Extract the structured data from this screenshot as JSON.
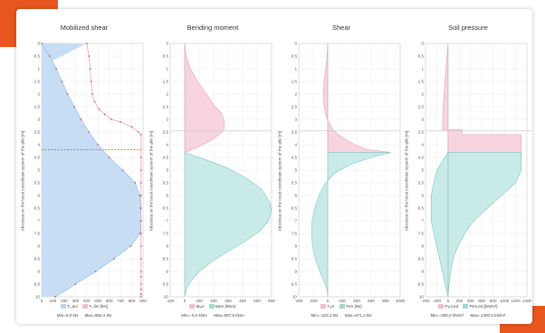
{
  "colors": {
    "accent": "#e8561f",
    "blue_fill": "#c7ddf4",
    "blue_line": "#9fc3ea",
    "pink_fill": "#f7d4de",
    "pink_line": "#e5a7b8",
    "teal_fill": "#c9ebe7",
    "teal_line": "#7cc8c0",
    "marker": "#c0607a"
  },
  "y_axis_title": "Abscissa on the local coordinate system of the pile [m]",
  "chart_data": [
    {
      "type": "area",
      "title": "Mobilized shear",
      "y_ticks": [
        "0",
        "0.5",
        "1",
        "1.5",
        "2",
        "2.5",
        "3",
        "3.5",
        "4",
        "4.5",
        "5",
        "5.5",
        "6",
        "6.5",
        "7",
        "7.5",
        "8",
        "8.5",
        "9",
        "9.5",
        "10"
      ],
      "x_ticks": [
        "0",
        "100",
        "200",
        "300",
        "400",
        "500",
        "600",
        "700",
        "800",
        "900"
      ],
      "xlim": [
        0,
        900
      ],
      "ylim": [
        0,
        10
      ],
      "legend": [
        {
          "label": "T₁,act",
          "color": "#9fc3ea"
        },
        {
          "label": "T₁,lim [kN]",
          "color": "#e5a7b8"
        }
      ],
      "min_label": "Min=0,0 kN",
      "max_label": "Max=882,4 kN",
      "series": [
        {
          "name": "T₁,act",
          "x": [
            0,
            70,
            130,
            180,
            230,
            290,
            350,
            420,
            500,
            600,
            720,
            830,
            870,
            878,
            882,
            875,
            790,
            640,
            480,
            300,
            120
          ],
          "y": [
            0,
            0.5,
            1,
            1.5,
            2,
            2.5,
            3,
            3.5,
            4,
            4.5,
            5,
            5.5,
            6,
            6.5,
            7,
            7.5,
            8,
            8.5,
            9,
            9.5,
            10
          ]
        },
        {
          "name": "T₁,lim",
          "x": [
            400,
            420,
            430,
            440,
            450,
            470,
            510,
            560,
            620,
            700,
            800,
            860,
            882,
            882,
            882,
            882,
            882,
            882,
            882,
            882,
            882,
            882,
            882,
            882,
            882,
            882,
            882,
            882
          ],
          "y": [
            0,
            0.5,
            1,
            1.5,
            2,
            2.3,
            2.6,
            2.8,
            3.0,
            3.1,
            3.3,
            3.5,
            3.6,
            4.5,
            5,
            5.5,
            6,
            6.5,
            7,
            7.5,
            8,
            8.5,
            9,
            9.2,
            9.5,
            9.7,
            9.9,
            10
          ]
        }
      ],
      "hline": 4.2,
      "hline_color": "#e8561f"
    },
    {
      "type": "area",
      "title": "Bending moment",
      "y_ticks": [
        "0",
        "0.5",
        "1",
        "1.5",
        "2",
        "2.5",
        "3",
        "3.5",
        "4",
        "4.5",
        "5",
        "5.5",
        "6",
        "6.5",
        "7",
        "7.5",
        "8",
        "8.5",
        "9",
        "9.5",
        "10"
      ],
      "x_ticks": [
        "-100",
        "0",
        "100",
        "200",
        "300",
        "400",
        "500",
        "600"
      ],
      "xlim": [
        -100,
        600
      ],
      "ylim": [
        0,
        10
      ],
      "legend": [
        {
          "label": "Mₐct",
          "color": "#e5a7b8"
        },
        {
          "label": "Mₗim [kNm]",
          "color": "#7cc8c0"
        }
      ],
      "min_label": "Min=-0,0 kNm",
      "max_label": "Max=597,5 kNm",
      "series": [
        {
          "name": "Mₐct",
          "x": [
            0,
            10,
            40,
            90,
            150,
            210,
            255,
            275,
            270,
            240,
            175,
            90,
            0
          ],
          "y": [
            0,
            0.5,
            1,
            1.5,
            2,
            2.5,
            2.75,
            3.1,
            3.4,
            3.6,
            3.85,
            4.1,
            4.3
          ]
        },
        {
          "name": "Mₗim",
          "x": [
            0,
            150,
            290,
            420,
            530,
            590,
            597,
            580,
            520,
            420,
            300,
            190,
            100,
            40,
            10,
            0
          ],
          "y": [
            4.3,
            4.6,
            4.9,
            5.3,
            5.75,
            6.3,
            6.6,
            7.0,
            7.4,
            7.8,
            8.2,
            8.6,
            9.0,
            9.4,
            9.7,
            10
          ]
        }
      ]
    },
    {
      "type": "area",
      "title": "Shear",
      "y_ticks": [
        "0",
        "0.5",
        "1",
        "1.5",
        "2",
        "2.5",
        "3",
        "3.5",
        "4",
        "4.5",
        "5",
        "5.5",
        "6",
        "6.5",
        "7",
        "7.5",
        "8",
        "8.5",
        "9",
        "9.5",
        "10"
      ],
      "x_ticks": [
        "-400",
        "-200",
        "0",
        "200",
        "400",
        "600",
        "800",
        "1000"
      ],
      "xlim": [
        -400,
        1000
      ],
      "ylim": [
        0,
        10
      ],
      "legend": [
        {
          "label": "Tₐct",
          "color": "#e5a7b8"
        },
        {
          "label": "Tₗim [kN]",
          "color": "#7cc8c0"
        }
      ],
      "min_label": "Min=-222,3 kN",
      "max_label": "Max=871,2 kN",
      "series": [
        {
          "name": "Tₐct",
          "x": [
            0,
            -10,
            -28,
            -52,
            -62,
            -55,
            -30,
            10,
            70,
            150,
            250,
            380,
            560,
            871
          ],
          "y": [
            0,
            0.5,
            1,
            1.5,
            2,
            2.4,
            2.8,
            3.1,
            3.4,
            3.6,
            3.8,
            4.0,
            4.2,
            4.3
          ]
        },
        {
          "name": "Tₗim",
          "x": [
            871,
            600,
            300,
            100,
            -30,
            -120,
            -180,
            -215,
            -222,
            -210,
            -170,
            -110,
            -50,
            -10,
            0
          ],
          "y": [
            4.3,
            4.5,
            4.8,
            5.1,
            5.5,
            6.0,
            6.5,
            7.0,
            7.5,
            8.0,
            8.5,
            9.0,
            9.4,
            9.7,
            10
          ]
        }
      ]
    },
    {
      "type": "area",
      "title": "Soil pressure",
      "y_ticks": [
        "0",
        "0.5",
        "1",
        "1.5",
        "2",
        "2.5",
        "3",
        "3.5",
        "4",
        "4.5",
        "5",
        "5.5",
        "6",
        "6.5",
        "7",
        "7.5",
        "8",
        "8.5",
        "9",
        "9.5",
        "10"
      ],
      "x_ticks": [
        "-400",
        "-200",
        "0",
        "200",
        "400",
        "600",
        "800",
        "1000",
        "1200",
        "1400"
      ],
      "xlim": [
        -400,
        1400
      ],
      "ylim": [
        0,
        10
      ],
      "legend": [
        {
          "label": "Pₐct,ed",
          "color": "#e5a7b8"
        },
        {
          "label": "Pₗim,ed [kN/m²]",
          "color": "#7cc8c0"
        }
      ],
      "min_label": "Min=-300,0 kN/m²",
      "max_label": "Max=1300,0 kN/m²",
      "series": [
        {
          "name": "Pₐct,ed",
          "x": [
            0,
            -30,
            -60,
            -90,
            -100,
            250,
            250,
            1300,
            1300
          ],
          "y": [
            0,
            0.8,
            1.6,
            2.6,
            3.4,
            3.4,
            3.6,
            3.6,
            4.3
          ]
        },
        {
          "name": "Pₗim,ed",
          "x": [
            1300,
            1300,
            1200,
            1000,
            800,
            600,
            420,
            300,
            200,
            120,
            70,
            40,
            20,
            0
          ],
          "y": [
            4.3,
            5.0,
            5.5,
            5.9,
            6.3,
            6.7,
            7.1,
            7.5,
            7.9,
            8.3,
            8.7,
            9.1,
            9.5,
            10
          ]
        },
        {
          "name": "neg",
          "x": [
            0,
            -200,
            -300,
            -300,
            -250,
            -200,
            -150,
            -100,
            -50,
            0
          ],
          "y": [
            4.3,
            5.0,
            6.0,
            7.0,
            7.5,
            8.0,
            8.5,
            9.0,
            9.5,
            10
          ]
        }
      ],
      "hline": 3.45,
      "hline_color": "#cccccc"
    }
  ]
}
